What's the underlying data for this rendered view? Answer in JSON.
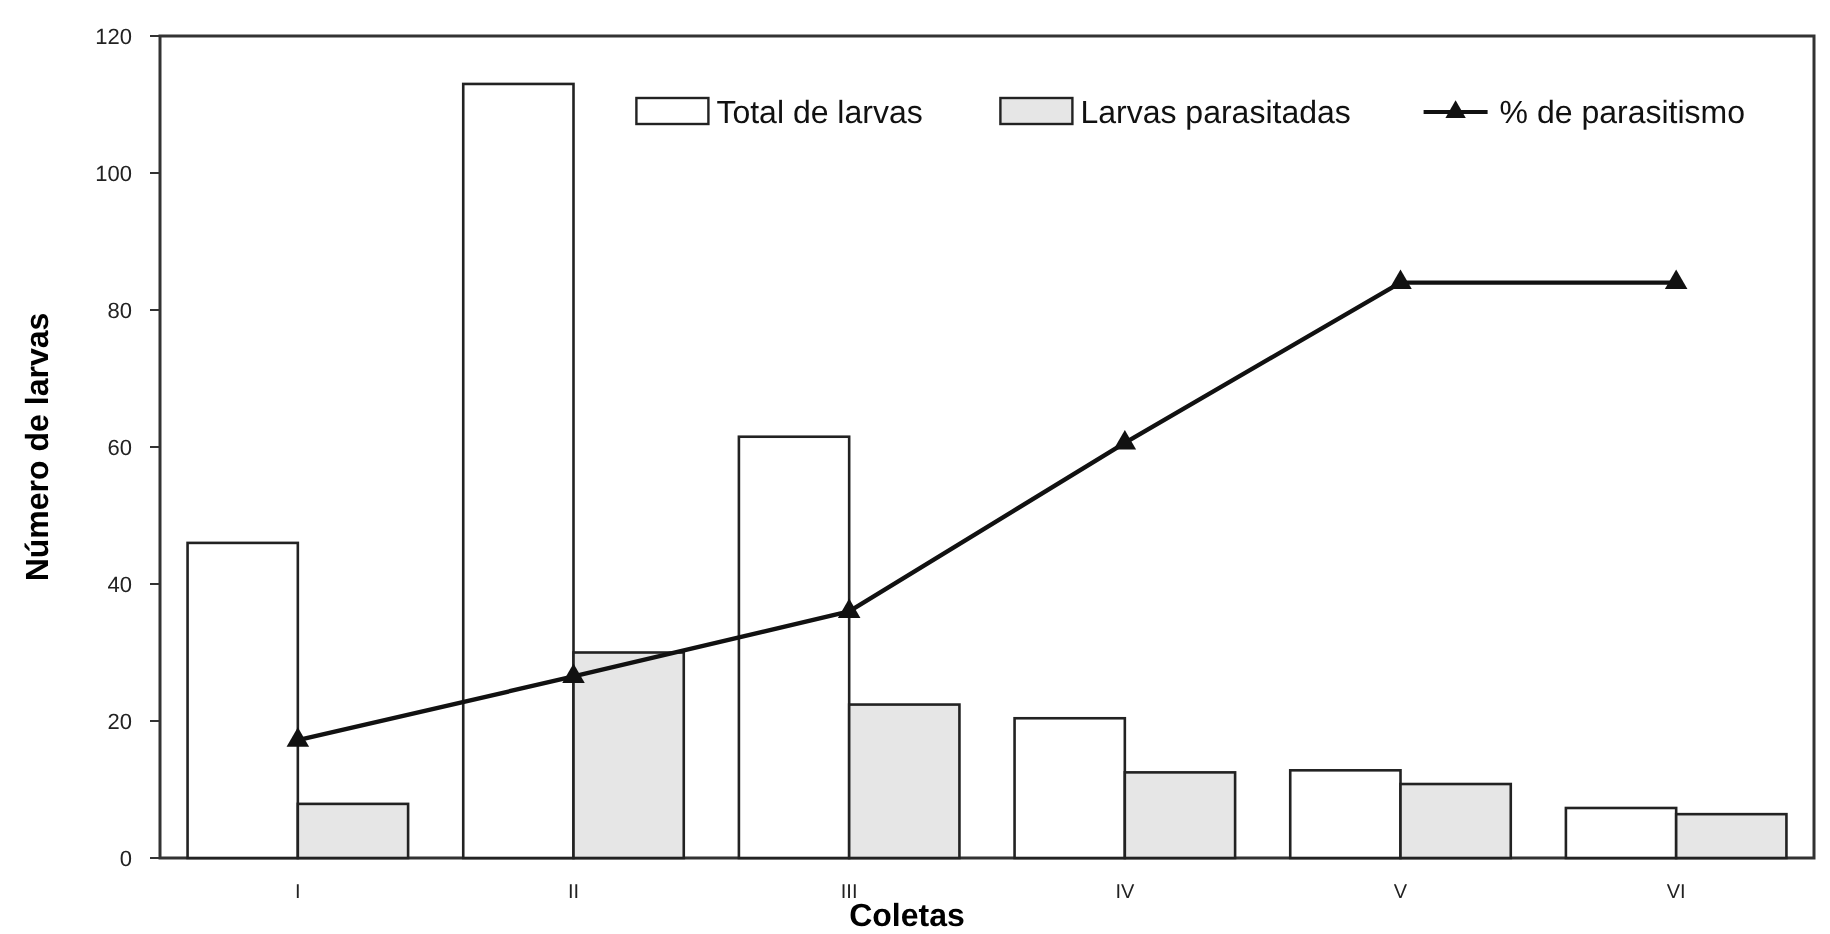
{
  "chart_data": {
    "type": "bar",
    "xlabel": "Coletas",
    "ylabel": "Número de larvas",
    "categories": [
      "I",
      "II",
      "III",
      "IV",
      "V",
      "VI"
    ],
    "series": [
      {
        "name": "Total de larvas",
        "color": "#ffffff",
        "values": [
          46,
          113,
          61.5,
          20.4,
          12.8,
          7.3
        ]
      },
      {
        "name": "Larvas parasitadas",
        "color": "#e6e6e6",
        "values": [
          7.9,
          30,
          22.4,
          12.5,
          10.8,
          6.4
        ]
      },
      {
        "name": "% de parasitismo",
        "type": "line",
        "color": "#111111",
        "marker": "triangle",
        "values": [
          17.2,
          26.5,
          36,
          60.6,
          84,
          84
        ]
      }
    ],
    "ylim": [
      0,
      120
    ],
    "yticks": [
      0,
      20,
      40,
      60,
      80,
      100,
      120
    ],
    "grid": false,
    "legend": "top right"
  }
}
